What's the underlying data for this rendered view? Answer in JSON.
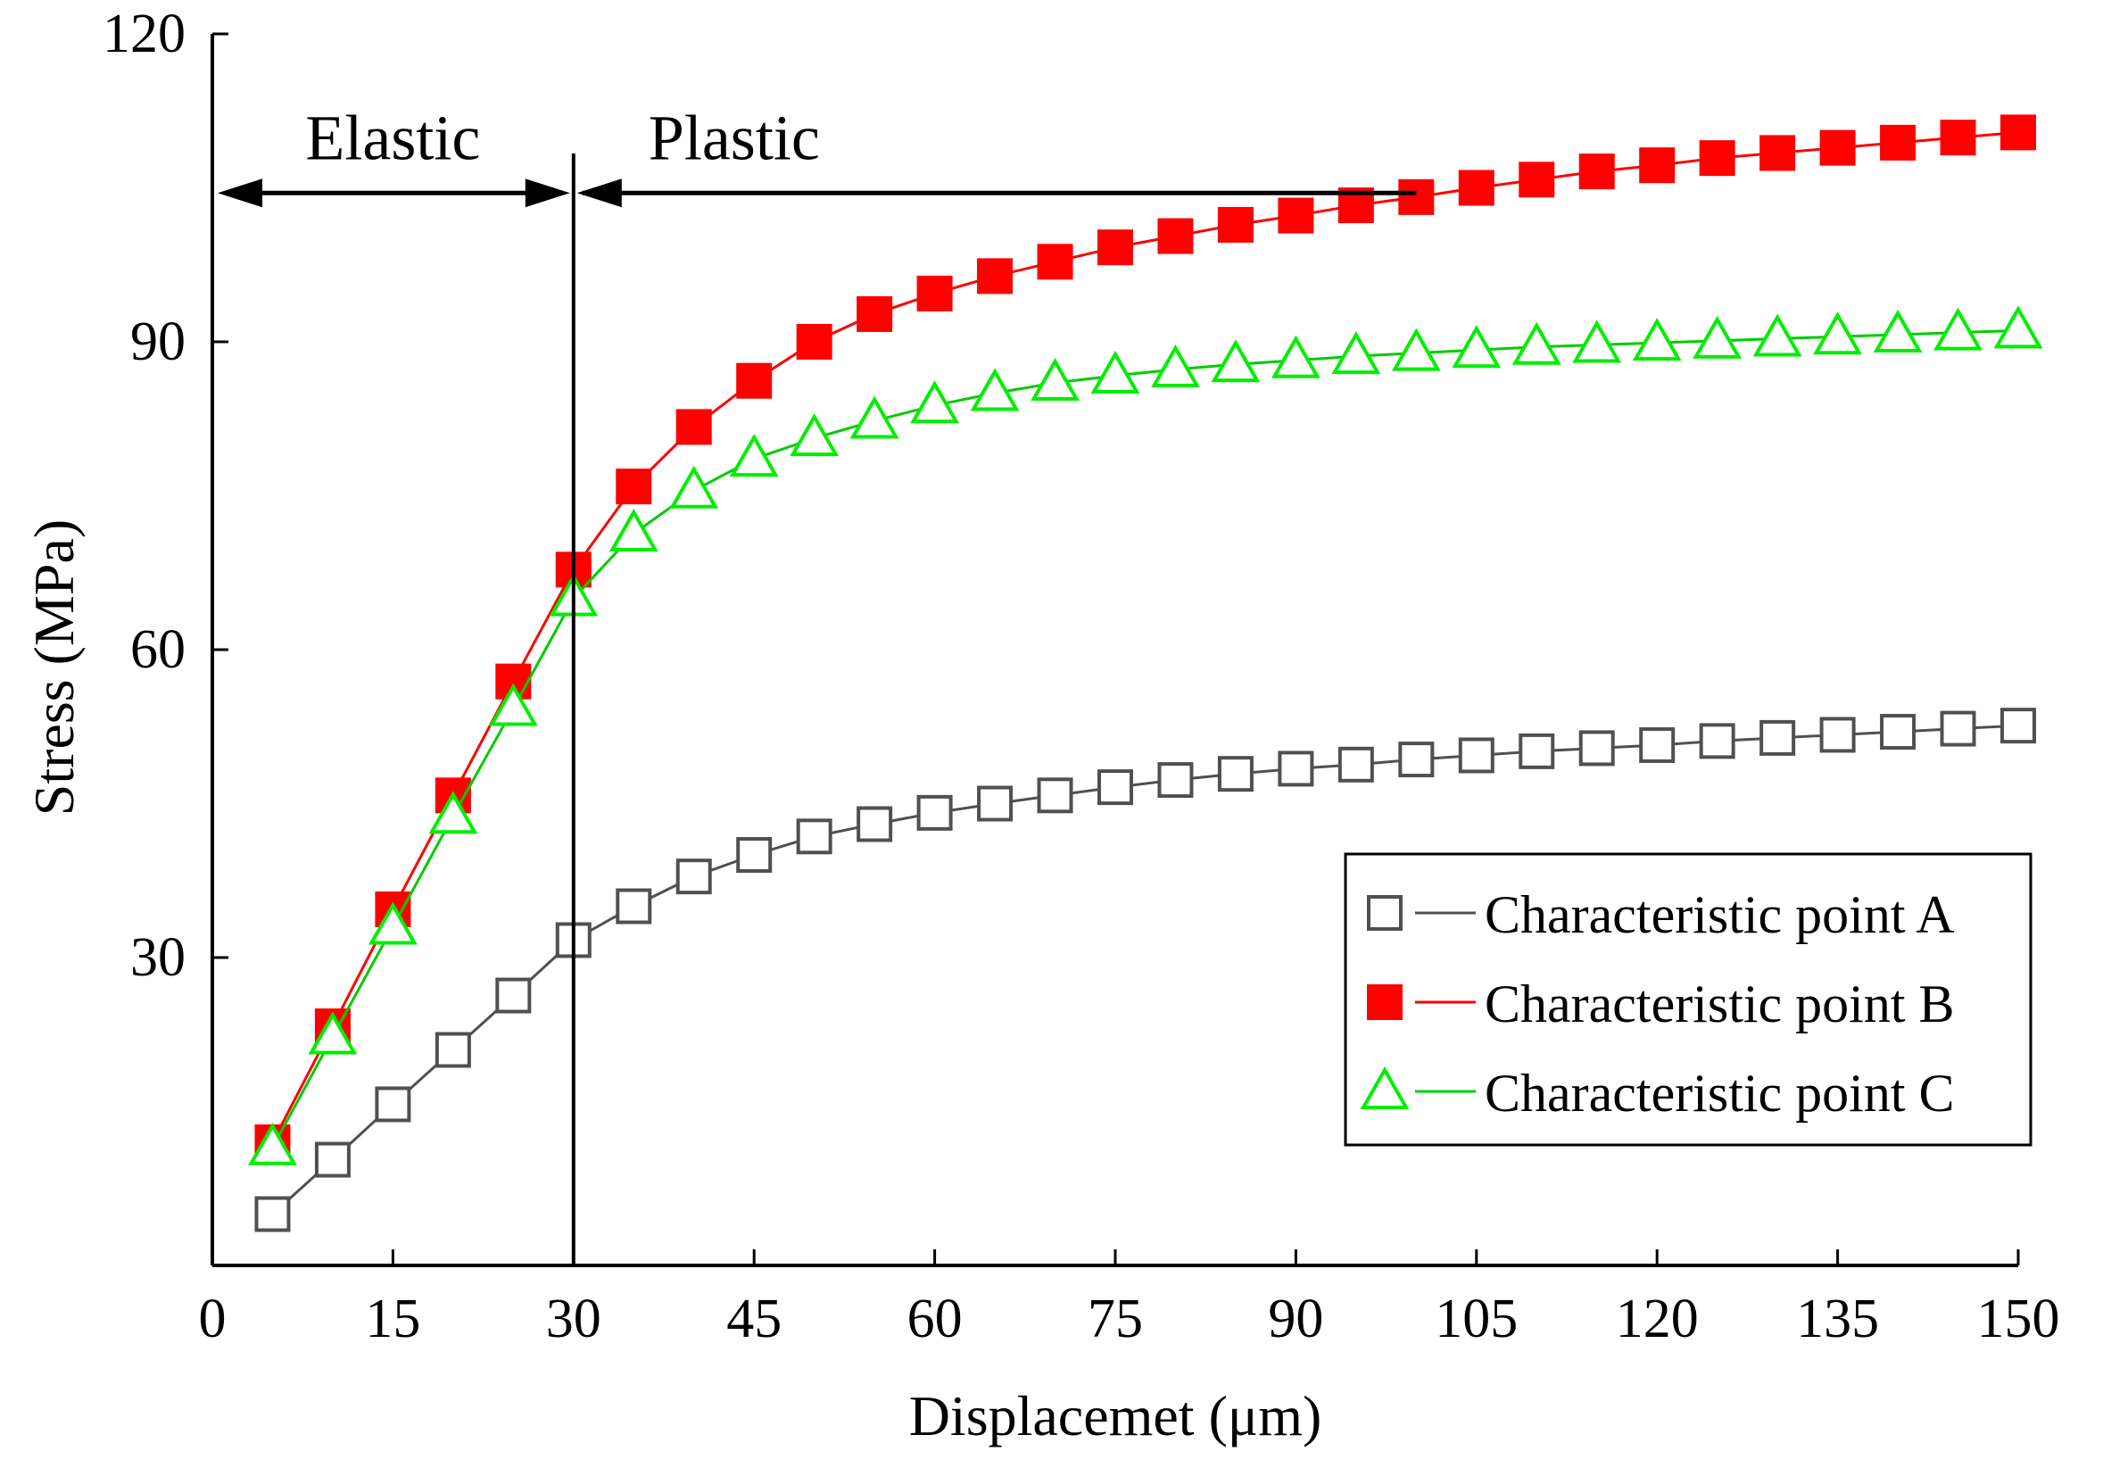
{
  "chart_data": {
    "type": "line",
    "title": "",
    "xlabel": "Displacemet (μm)",
    "ylabel": "Stress (MPa)",
    "xlim": [
      0,
      150
    ],
    "ylim": [
      0,
      120
    ],
    "xticks": [
      0,
      15,
      30,
      45,
      60,
      75,
      90,
      105,
      120,
      135,
      150
    ],
    "yticks": [
      30,
      60,
      90,
      120
    ],
    "grid": false,
    "legend_position": "bottom-right",
    "x": [
      5,
      10,
      15,
      20,
      25,
      30,
      35,
      40,
      45,
      50,
      55,
      60,
      65,
      70,
      75,
      80,
      85,
      90,
      95,
      100,
      105,
      110,
      115,
      120,
      125,
      130,
      135,
      140,
      145,
      150
    ],
    "series": [
      {
        "name": "Characteristic point A",
        "marker": "open-square",
        "color": "#505050",
        "line_color": "#505050",
        "values": [
          5,
          10.3,
          15.7,
          21,
          26.3,
          31.7,
          35,
          37.9,
          40,
          41.8,
          43,
          44.1,
          45,
          45.8,
          46.6,
          47.3,
          47.9,
          48.4,
          48.8,
          49.3,
          49.7,
          50.1,
          50.4,
          50.7,
          51.1,
          51.4,
          51.7,
          52,
          52.3,
          52.6
        ]
      },
      {
        "name": "Characteristic point B",
        "marker": "filled-square",
        "color": "#ff0000",
        "line_color": "#ff0000",
        "values": [
          12,
          23.3,
          34.7,
          45.8,
          56.9,
          67.8,
          75.9,
          81.7,
          86.2,
          90,
          92.7,
          94.7,
          96.4,
          97.8,
          99.2,
          100.3,
          101.4,
          102.3,
          103.3,
          104.1,
          105,
          105.8,
          106.6,
          107.2,
          107.9,
          108.4,
          108.9,
          109.4,
          109.9,
          110.4
        ]
      },
      {
        "name": "Characteristic point C",
        "marker": "open-triangle",
        "color": "#00ee00",
        "line_color": "#00cc00",
        "values": [
          11.5,
          22.3,
          33,
          43.8,
          54.3,
          65,
          71.3,
          75.5,
          78.6,
          80.6,
          82.3,
          83.8,
          85,
          86,
          86.7,
          87.3,
          87.8,
          88.2,
          88.6,
          88.9,
          89.2,
          89.5,
          89.7,
          89.9,
          90.1,
          90.3,
          90.5,
          90.7,
          90.9,
          91.1
        ]
      }
    ],
    "annotations": [
      {
        "text": "Elastic",
        "from_x": 0,
        "to_x": 30,
        "y": 104.5
      },
      {
        "text": "Plastic",
        "from_x": 30,
        "to_x": 100,
        "y": 104.5
      }
    ],
    "divider_x": 30
  }
}
